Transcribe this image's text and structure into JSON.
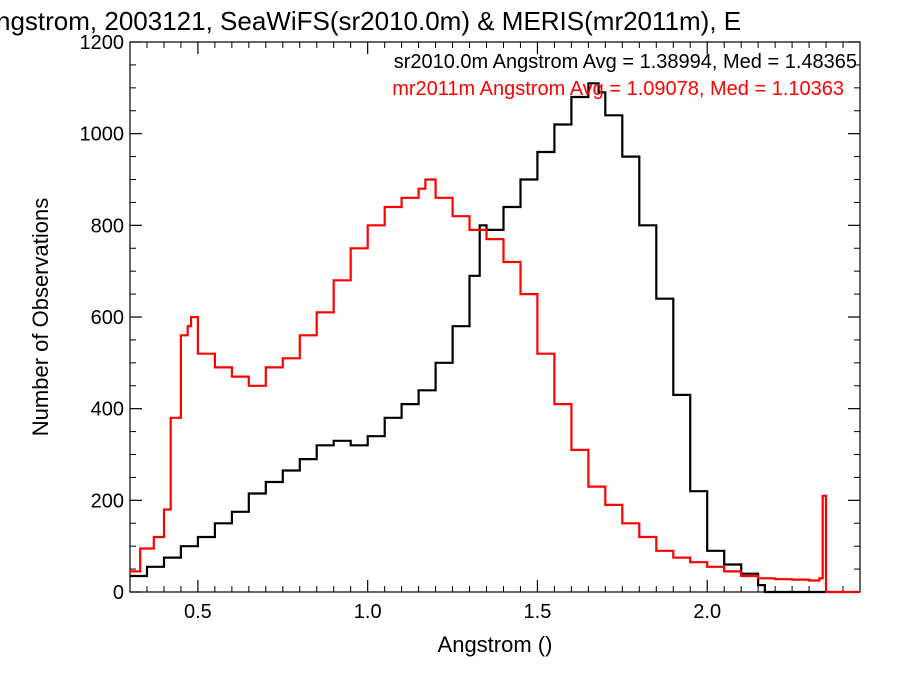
{
  "chart_data": {
    "type": "line",
    "title": "ngstrom, 2003121, SeaWiFS(sr2010.0m) & MERIS(mr2011m), E",
    "xlabel": "Angstrom ()",
    "ylabel": "Number of Observations",
    "xlim": [
      0.3,
      2.45
    ],
    "ylim": [
      0,
      1200
    ],
    "xticks": [
      0.5,
      1.0,
      1.5,
      2.0
    ],
    "xtick_labels": [
      "0.5",
      "1.0",
      "1.5",
      "2.0"
    ],
    "yticks": [
      0,
      200,
      400,
      600,
      800,
      1000,
      1200
    ],
    "ytick_labels": [
      "0",
      "200",
      "400",
      "600",
      "800",
      "1000",
      "1200"
    ],
    "grid": false,
    "legend": "top-right",
    "annotations": [
      {
        "text": "sr2010.0m Angstrom Avg = 1.38994, Med = 1.48365",
        "color": "#000000"
      },
      {
        "text": "mr2011m Angstrom Avg = 1.09078, Med = 1.10363",
        "color": "#ff0000"
      }
    ],
    "series": [
      {
        "color": "#000000",
        "x": [
          0.3,
          0.35,
          0.4,
          0.45,
          0.5,
          0.55,
          0.6,
          0.65,
          0.7,
          0.75,
          0.8,
          0.85,
          0.9,
          0.95,
          1.0,
          1.05,
          1.1,
          1.15,
          1.2,
          1.25,
          1.3,
          1.33,
          1.35,
          1.4,
          1.45,
          1.5,
          1.55,
          1.6,
          1.65,
          1.68,
          1.7,
          1.75,
          1.8,
          1.85,
          1.9,
          1.95,
          2.0,
          2.05,
          2.1,
          2.15,
          2.17,
          2.2,
          2.3,
          2.35
        ],
        "y": [
          35,
          55,
          75,
          100,
          120,
          150,
          175,
          215,
          240,
          265,
          290,
          320,
          330,
          320,
          340,
          380,
          410,
          440,
          500,
          580,
          690,
          800,
          790,
          840,
          900,
          960,
          1020,
          1080,
          1110,
          1090,
          1040,
          950,
          800,
          640,
          430,
          220,
          90,
          60,
          40,
          15,
          0,
          0,
          0,
          0
        ]
      },
      {
        "color": "#ff0000",
        "x": [
          0.3,
          0.33,
          0.37,
          0.4,
          0.42,
          0.45,
          0.47,
          0.48,
          0.5,
          0.55,
          0.6,
          0.65,
          0.7,
          0.75,
          0.8,
          0.85,
          0.9,
          0.95,
          1.0,
          1.05,
          1.1,
          1.15,
          1.17,
          1.2,
          1.25,
          1.3,
          1.35,
          1.4,
          1.45,
          1.5,
          1.55,
          1.6,
          1.65,
          1.7,
          1.75,
          1.8,
          1.85,
          1.9,
          1.95,
          2.0,
          2.05,
          2.1,
          2.15,
          2.2,
          2.25,
          2.3,
          2.33,
          2.34,
          2.35,
          2.45
        ],
        "y": [
          45,
          95,
          120,
          180,
          380,
          560,
          580,
          600,
          520,
          490,
          470,
          450,
          490,
          510,
          560,
          610,
          680,
          750,
          800,
          840,
          860,
          880,
          900,
          860,
          820,
          790,
          770,
          720,
          650,
          520,
          410,
          310,
          230,
          190,
          150,
          120,
          90,
          75,
          65,
          55,
          45,
          35,
          30,
          28,
          27,
          25,
          30,
          210,
          0,
          0
        ]
      }
    ]
  }
}
